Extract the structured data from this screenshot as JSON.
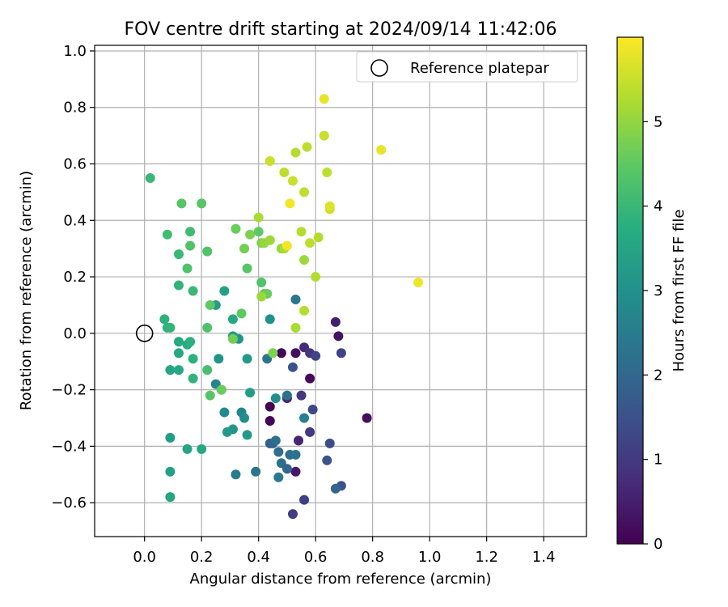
{
  "chart_data": {
    "type": "scatter",
    "title": "FOV centre drift starting at 2024/09/14 11:42:06",
    "xlabel": "Angular distance from reference (arcmin)",
    "ylabel": "Rotation from reference (arcmin)",
    "xlim": [
      -0.175,
      1.55
    ],
    "ylim": [
      -0.72,
      1.02
    ],
    "xticks": [
      0.0,
      0.2,
      0.4,
      0.6,
      0.8,
      1.0,
      1.2,
      1.4
    ],
    "xtick_labels": [
      "0.0",
      "0.2",
      "0.4",
      "0.6",
      "0.8",
      "1.0",
      "1.2",
      "1.4"
    ],
    "yticks": [
      -0.6,
      -0.4,
      -0.2,
      0.0,
      0.2,
      0.4,
      0.6,
      0.8,
      1.0
    ],
    "ytick_labels": [
      "−0.6",
      "−0.4",
      "−0.2",
      "0.0",
      "0.2",
      "0.4",
      "0.6",
      "0.8",
      "1.0"
    ],
    "grid": true,
    "legend": {
      "position": "top-right",
      "entries": [
        "Reference platepar"
      ]
    },
    "reference_point": {
      "x": 0.0,
      "y": 0.0,
      "label": "Reference platepar"
    },
    "colorbar": {
      "label": "Hours from first FF file",
      "colormap": "viridis",
      "min": 0,
      "max": 6,
      "ticks": [
        0,
        1,
        2,
        3,
        4,
        5
      ],
      "tick_labels": [
        "0",
        "1",
        "2",
        "3",
        "4",
        "5"
      ]
    },
    "points": [
      {
        "x": 0.44,
        "y": -0.26,
        "c": 0.0
      },
      {
        "x": 0.44,
        "y": -0.31,
        "c": 0.05
      },
      {
        "x": 0.48,
        "y": -0.07,
        "c": 0.1
      },
      {
        "x": 0.53,
        "y": -0.07,
        "c": 0.2
      },
      {
        "x": 0.58,
        "y": -0.16,
        "c": 0.15
      },
      {
        "x": 0.68,
        "y": -0.01,
        "c": 0.3
      },
      {
        "x": 0.78,
        "y": -0.3,
        "c": 0.2
      },
      {
        "x": 0.67,
        "y": 0.04,
        "c": 0.5
      },
      {
        "x": 0.56,
        "y": -0.05,
        "c": 0.7
      },
      {
        "x": 0.53,
        "y": -0.49,
        "c": 0.4
      },
      {
        "x": 0.5,
        "y": -0.23,
        "c": 0.6
      },
      {
        "x": 0.54,
        "y": -0.38,
        "c": 0.6
      },
      {
        "x": 0.58,
        "y": -0.07,
        "c": 0.9
      },
      {
        "x": 0.6,
        "y": -0.08,
        "c": 1.2
      },
      {
        "x": 0.69,
        "y": -0.07,
        "c": 1.2
      },
      {
        "x": 0.52,
        "y": -0.64,
        "c": 1.1
      },
      {
        "x": 0.56,
        "y": -0.59,
        "c": 1.1
      },
      {
        "x": 0.58,
        "y": -0.35,
        "c": 1.0
      },
      {
        "x": 0.55,
        "y": -0.22,
        "c": 1.0
      },
      {
        "x": 0.59,
        "y": -0.27,
        "c": 1.3
      },
      {
        "x": 0.52,
        "y": -0.12,
        "c": 1.5
      },
      {
        "x": 0.65,
        "y": -0.39,
        "c": 1.4
      },
      {
        "x": 0.64,
        "y": -0.45,
        "c": 1.5
      },
      {
        "x": 0.69,
        "y": -0.54,
        "c": 1.5
      },
      {
        "x": 0.67,
        "y": -0.55,
        "c": 2.0
      },
      {
        "x": 0.44,
        "y": -0.39,
        "c": 1.8
      },
      {
        "x": 0.45,
        "y": -0.39,
        "c": 1.9
      },
      {
        "x": 0.47,
        "y": -0.42,
        "c": 2.1
      },
      {
        "x": 0.48,
        "y": -0.46,
        "c": 2.2
      },
      {
        "x": 0.5,
        "y": -0.48,
        "c": 2.0
      },
      {
        "x": 0.51,
        "y": -0.43,
        "c": 2.1
      },
      {
        "x": 0.46,
        "y": -0.38,
        "c": 2.2
      },
      {
        "x": 0.39,
        "y": -0.49,
        "c": 2.3
      },
      {
        "x": 0.47,
        "y": -0.51,
        "c": 2.4
      },
      {
        "x": 0.5,
        "y": -0.22,
        "c": 2.2
      },
      {
        "x": 0.53,
        "y": -0.43,
        "c": 2.3
      },
      {
        "x": 0.56,
        "y": -0.3,
        "c": 2.6
      },
      {
        "x": 0.43,
        "y": -0.09,
        "c": 2.3
      },
      {
        "x": 0.53,
        "y": 0.12,
        "c": 2.4
      },
      {
        "x": 0.46,
        "y": -0.23,
        "c": 2.9
      },
      {
        "x": 0.44,
        "y": 0.05,
        "c": 3.0
      },
      {
        "x": 0.32,
        "y": -0.5,
        "c": 2.5
      },
      {
        "x": 0.25,
        "y": -0.18,
        "c": 2.7
      },
      {
        "x": 0.27,
        "y": -0.2,
        "c": 2.8
      },
      {
        "x": 0.28,
        "y": -0.28,
        "c": 2.8
      },
      {
        "x": 0.34,
        "y": -0.28,
        "c": 2.7
      },
      {
        "x": 0.35,
        "y": -0.3,
        "c": 2.9
      },
      {
        "x": 0.31,
        "y": -0.34,
        "c": 3.1
      },
      {
        "x": 0.29,
        "y": -0.35,
        "c": 3.2
      },
      {
        "x": 0.36,
        "y": -0.36,
        "c": 3.2
      },
      {
        "x": 0.26,
        "y": -0.09,
        "c": 3.1
      },
      {
        "x": 0.33,
        "y": -0.02,
        "c": 3.1
      },
      {
        "x": 0.31,
        "y": -0.01,
        "c": 3.2
      },
      {
        "x": 0.36,
        "y": -0.09,
        "c": 3.2
      },
      {
        "x": 0.37,
        "y": -0.21,
        "c": 3.3
      },
      {
        "x": 0.25,
        "y": 0.1,
        "c": 3.3
      },
      {
        "x": 0.28,
        "y": 0.15,
        "c": 3.4
      },
      {
        "x": 0.31,
        "y": 0.05,
        "c": 3.6
      },
      {
        "x": 0.09,
        "y": -0.37,
        "c": 3.3
      },
      {
        "x": 0.09,
        "y": -0.49,
        "c": 3.4
      },
      {
        "x": 0.09,
        "y": -0.58,
        "c": 3.5
      },
      {
        "x": 0.15,
        "y": -0.41,
        "c": 3.5
      },
      {
        "x": 0.2,
        "y": -0.41,
        "c": 3.6
      },
      {
        "x": 0.09,
        "y": -0.13,
        "c": 3.5
      },
      {
        "x": 0.12,
        "y": -0.13,
        "c": 3.6
      },
      {
        "x": 0.12,
        "y": -0.07,
        "c": 3.6
      },
      {
        "x": 0.12,
        "y": -0.03,
        "c": 3.6
      },
      {
        "x": 0.15,
        "y": -0.04,
        "c": 3.7
      },
      {
        "x": 0.16,
        "y": -0.03,
        "c": 3.8
      },
      {
        "x": 0.17,
        "y": -0.09,
        "c": 3.8
      },
      {
        "x": 0.17,
        "y": -0.16,
        "c": 3.9
      },
      {
        "x": 0.07,
        "y": 0.05,
        "c": 3.8
      },
      {
        "x": 0.08,
        "y": 0.02,
        "c": 3.8
      },
      {
        "x": 0.09,
        "y": 0.02,
        "c": 3.9
      },
      {
        "x": 0.12,
        "y": 0.17,
        "c": 3.9
      },
      {
        "x": 0.17,
        "y": 0.15,
        "c": 4.0
      },
      {
        "x": 0.12,
        "y": 0.28,
        "c": 4.0
      },
      {
        "x": 0.08,
        "y": 0.35,
        "c": 4.1
      },
      {
        "x": 0.16,
        "y": 0.36,
        "c": 4.1
      },
      {
        "x": 0.02,
        "y": 0.55,
        "c": 4.0
      },
      {
        "x": 0.22,
        "y": -0.13,
        "c": 4.2
      },
      {
        "x": 0.22,
        "y": 0.02,
        "c": 4.3
      },
      {
        "x": 0.23,
        "y": -0.22,
        "c": 4.4
      },
      {
        "x": 0.27,
        "y": -0.2,
        "c": 4.6
      },
      {
        "x": 0.15,
        "y": 0.23,
        "c": 4.3
      },
      {
        "x": 0.16,
        "y": 0.31,
        "c": 4.3
      },
      {
        "x": 0.22,
        "y": 0.29,
        "c": 4.3
      },
      {
        "x": 0.13,
        "y": 0.46,
        "c": 4.4
      },
      {
        "x": 0.2,
        "y": 0.46,
        "c": 4.4
      },
      {
        "x": 0.23,
        "y": 0.1,
        "c": 4.5
      },
      {
        "x": 0.31,
        "y": -0.02,
        "c": 4.7
      },
      {
        "x": 0.34,
        "y": 0.07,
        "c": 4.5
      },
      {
        "x": 0.36,
        "y": 0.23,
        "c": 4.4
      },
      {
        "x": 0.41,
        "y": 0.18,
        "c": 4.3
      },
      {
        "x": 0.42,
        "y": 0.14,
        "c": 4.5
      },
      {
        "x": 0.43,
        "y": 0.14,
        "c": 4.6
      },
      {
        "x": 0.32,
        "y": 0.37,
        "c": 4.6
      },
      {
        "x": 0.35,
        "y": 0.3,
        "c": 4.7
      },
      {
        "x": 0.37,
        "y": 0.35,
        "c": 4.8
      },
      {
        "x": 0.4,
        "y": 0.36,
        "c": 4.5
      },
      {
        "x": 0.41,
        "y": 0.32,
        "c": 4.8
      },
      {
        "x": 0.42,
        "y": 0.32,
        "c": 5.0
      },
      {
        "x": 0.45,
        "y": -0.07,
        "c": 4.8
      },
      {
        "x": 0.41,
        "y": 0.13,
        "c": 5.1
      },
      {
        "x": 0.4,
        "y": 0.41,
        "c": 5.2
      },
      {
        "x": 0.44,
        "y": 0.33,
        "c": 5.1
      },
      {
        "x": 0.48,
        "y": 0.3,
        "c": 5.0
      },
      {
        "x": 0.49,
        "y": 0.3,
        "c": 5.2
      },
      {
        "x": 0.53,
        "y": 0.02,
        "c": 5.2
      },
      {
        "x": 0.56,
        "y": 0.08,
        "c": 5.3
      },
      {
        "x": 0.56,
        "y": 0.26,
        "c": 5.1
      },
      {
        "x": 0.6,
        "y": 0.2,
        "c": 5.3
      },
      {
        "x": 0.55,
        "y": 0.36,
        "c": 5.3
      },
      {
        "x": 0.58,
        "y": 0.32,
        "c": 5.4
      },
      {
        "x": 0.61,
        "y": 0.34,
        "c": 5.3
      },
      {
        "x": 0.44,
        "y": 0.61,
        "c": 5.5
      },
      {
        "x": 0.49,
        "y": 0.57,
        "c": 5.4
      },
      {
        "x": 0.52,
        "y": 0.54,
        "c": 5.5
      },
      {
        "x": 0.56,
        "y": 0.5,
        "c": 5.4
      },
      {
        "x": 0.53,
        "y": 0.64,
        "c": 5.3
      },
      {
        "x": 0.57,
        "y": 0.66,
        "c": 5.4
      },
      {
        "x": 0.63,
        "y": 0.7,
        "c": 5.5
      },
      {
        "x": 0.64,
        "y": 0.57,
        "c": 5.4
      },
      {
        "x": 0.65,
        "y": 0.44,
        "c": 5.5
      },
      {
        "x": 0.65,
        "y": 0.45,
        "c": 5.7
      },
      {
        "x": 0.5,
        "y": 0.31,
        "c": 5.9
      },
      {
        "x": 0.51,
        "y": 0.46,
        "c": 5.9
      },
      {
        "x": 0.63,
        "y": 0.83,
        "c": 5.8
      },
      {
        "x": 0.83,
        "y": 0.65,
        "c": 5.8
      },
      {
        "x": 0.96,
        "y": 0.18,
        "c": 5.85
      }
    ]
  }
}
